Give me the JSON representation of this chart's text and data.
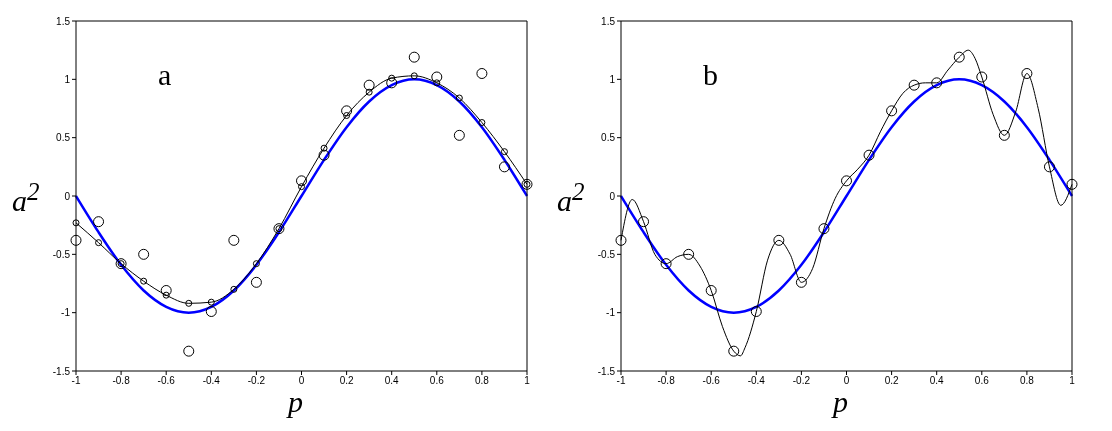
{
  "chart_data": [
    {
      "type": "line",
      "xlabel": "p",
      "ylabel": "a$^{2}$",
      "annotations": [
        "a"
      ],
      "xlim": [
        -1,
        1
      ],
      "ylim": [
        -1.5,
        1.5
      ],
      "xticks": [
        -1,
        -0.8,
        -0.6,
        -0.4,
        -0.2,
        0,
        0.2,
        0.4,
        0.6,
        0.8,
        1
      ],
      "yticks": [
        -1.5,
        -1,
        -0.5,
        0,
        0.5,
        1,
        1.5
      ],
      "grid": false,
      "legend": false,
      "x": [
        -1,
        -0.9,
        -0.8,
        -0.7,
        -0.6,
        -0.5,
        -0.4,
        -0.3,
        -0.2,
        -0.1,
        0,
        0.1,
        0.2,
        0.3,
        0.4,
        0.5,
        0.6,
        0.7,
        0.8,
        0.9,
        1
      ],
      "series": [
        {
          "color": "#0000ff",
          "marker": "none",
          "values": [
            0,
            -0.31,
            -0.59,
            -0.81,
            -0.95,
            -1,
            -0.95,
            -0.81,
            -0.59,
            -0.31,
            0,
            0.31,
            0.59,
            0.81,
            0.95,
            1,
            0.95,
            0.81,
            0.59,
            0.31,
            0
          ]
        },
        {
          "color": "#000000",
          "marker": "circle",
          "values": [
            -0.23,
            -0.4,
            -0.58,
            -0.73,
            -0.85,
            -0.92,
            -0.91,
            -0.8,
            -0.58,
            -0.28,
            0.08,
            0.41,
            0.69,
            0.89,
            1.01,
            1.03,
            0.97,
            0.84,
            0.63,
            0.38,
            0.1
          ]
        },
        {
          "type": "scatter",
          "color": "#000000",
          "marker": "circle",
          "values": [
            -0.38,
            -0.22,
            -0.58,
            -0.5,
            -0.81,
            -1.33,
            -0.99,
            -0.38,
            -0.74,
            -0.28,
            0.13,
            0.35,
            0.73,
            0.95,
            0.97,
            1.19,
            1.02,
            0.52,
            1.05,
            0.25,
            0.1
          ]
        }
      ]
    },
    {
      "type": "line",
      "xlabel": "p",
      "ylabel": "a$^{2}$",
      "annotations": [
        "b"
      ],
      "xlim": [
        -1,
        1
      ],
      "ylim": [
        -1.5,
        1.5
      ],
      "xticks": [
        -1,
        -0.8,
        -0.6,
        -0.4,
        -0.2,
        0,
        0.2,
        0.4,
        0.6,
        0.8,
        1
      ],
      "yticks": [
        -1.5,
        -1,
        -0.5,
        0,
        0.5,
        1,
        1.5
      ],
      "grid": false,
      "legend": false,
      "x": [
        -1,
        -0.9,
        -0.8,
        -0.7,
        -0.6,
        -0.5,
        -0.4,
        -0.3,
        -0.2,
        -0.1,
        0,
        0.1,
        0.2,
        0.3,
        0.4,
        0.5,
        0.6,
        0.7,
        0.8,
        0.9,
        1
      ],
      "series": [
        {
          "color": "#0000ff",
          "marker": "none",
          "values": [
            0,
            -0.31,
            -0.59,
            -0.81,
            -0.95,
            -1,
            -0.95,
            -0.81,
            -0.59,
            -0.31,
            0,
            0.31,
            0.59,
            0.81,
            0.95,
            1,
            0.95,
            0.81,
            0.59,
            0.31,
            0
          ]
        },
        {
          "color": "#000000",
          "marker": "none",
          "x": [
            -1,
            -0.95,
            -0.9,
            -0.85,
            -0.8,
            -0.75,
            -0.7,
            -0.65,
            -0.6,
            -0.55,
            -0.5,
            -0.47,
            -0.45,
            -0.4,
            -0.35,
            -0.3,
            -0.25,
            -0.2,
            -0.15,
            -0.1,
            -0.05,
            0,
            0.05,
            0.1,
            0.15,
            0.2,
            0.25,
            0.3,
            0.35,
            0.4,
            0.45,
            0.5,
            0.54,
            0.57,
            0.6,
            0.65,
            0.7,
            0.75,
            0.8,
            0.85,
            0.9,
            0.95,
            1
          ],
          "values": [
            -0.38,
            -0.03,
            -0.22,
            -0.5,
            -0.58,
            -0.52,
            -0.5,
            -0.6,
            -0.81,
            -1.12,
            -1.33,
            -1.37,
            -1.3,
            -0.99,
            -0.55,
            -0.38,
            -0.5,
            -0.74,
            -0.62,
            -0.28,
            -0.02,
            0.13,
            0.23,
            0.35,
            0.55,
            0.73,
            0.88,
            0.95,
            0.97,
            0.97,
            1.08,
            1.19,
            1.25,
            1.18,
            1.02,
            0.7,
            0.52,
            0.72,
            1.05,
            0.75,
            0.25,
            -0.08,
            0.1
          ]
        },
        {
          "type": "scatter",
          "color": "#000000",
          "marker": "circle",
          "values": [
            -0.38,
            -0.22,
            -0.58,
            -0.5,
            -0.81,
            -1.33,
            -0.99,
            -0.38,
            -0.74,
            -0.28,
            0.13,
            0.35,
            0.73,
            0.95,
            0.97,
            1.19,
            1.02,
            0.52,
            1.05,
            0.25,
            0.1
          ]
        }
      ]
    }
  ]
}
